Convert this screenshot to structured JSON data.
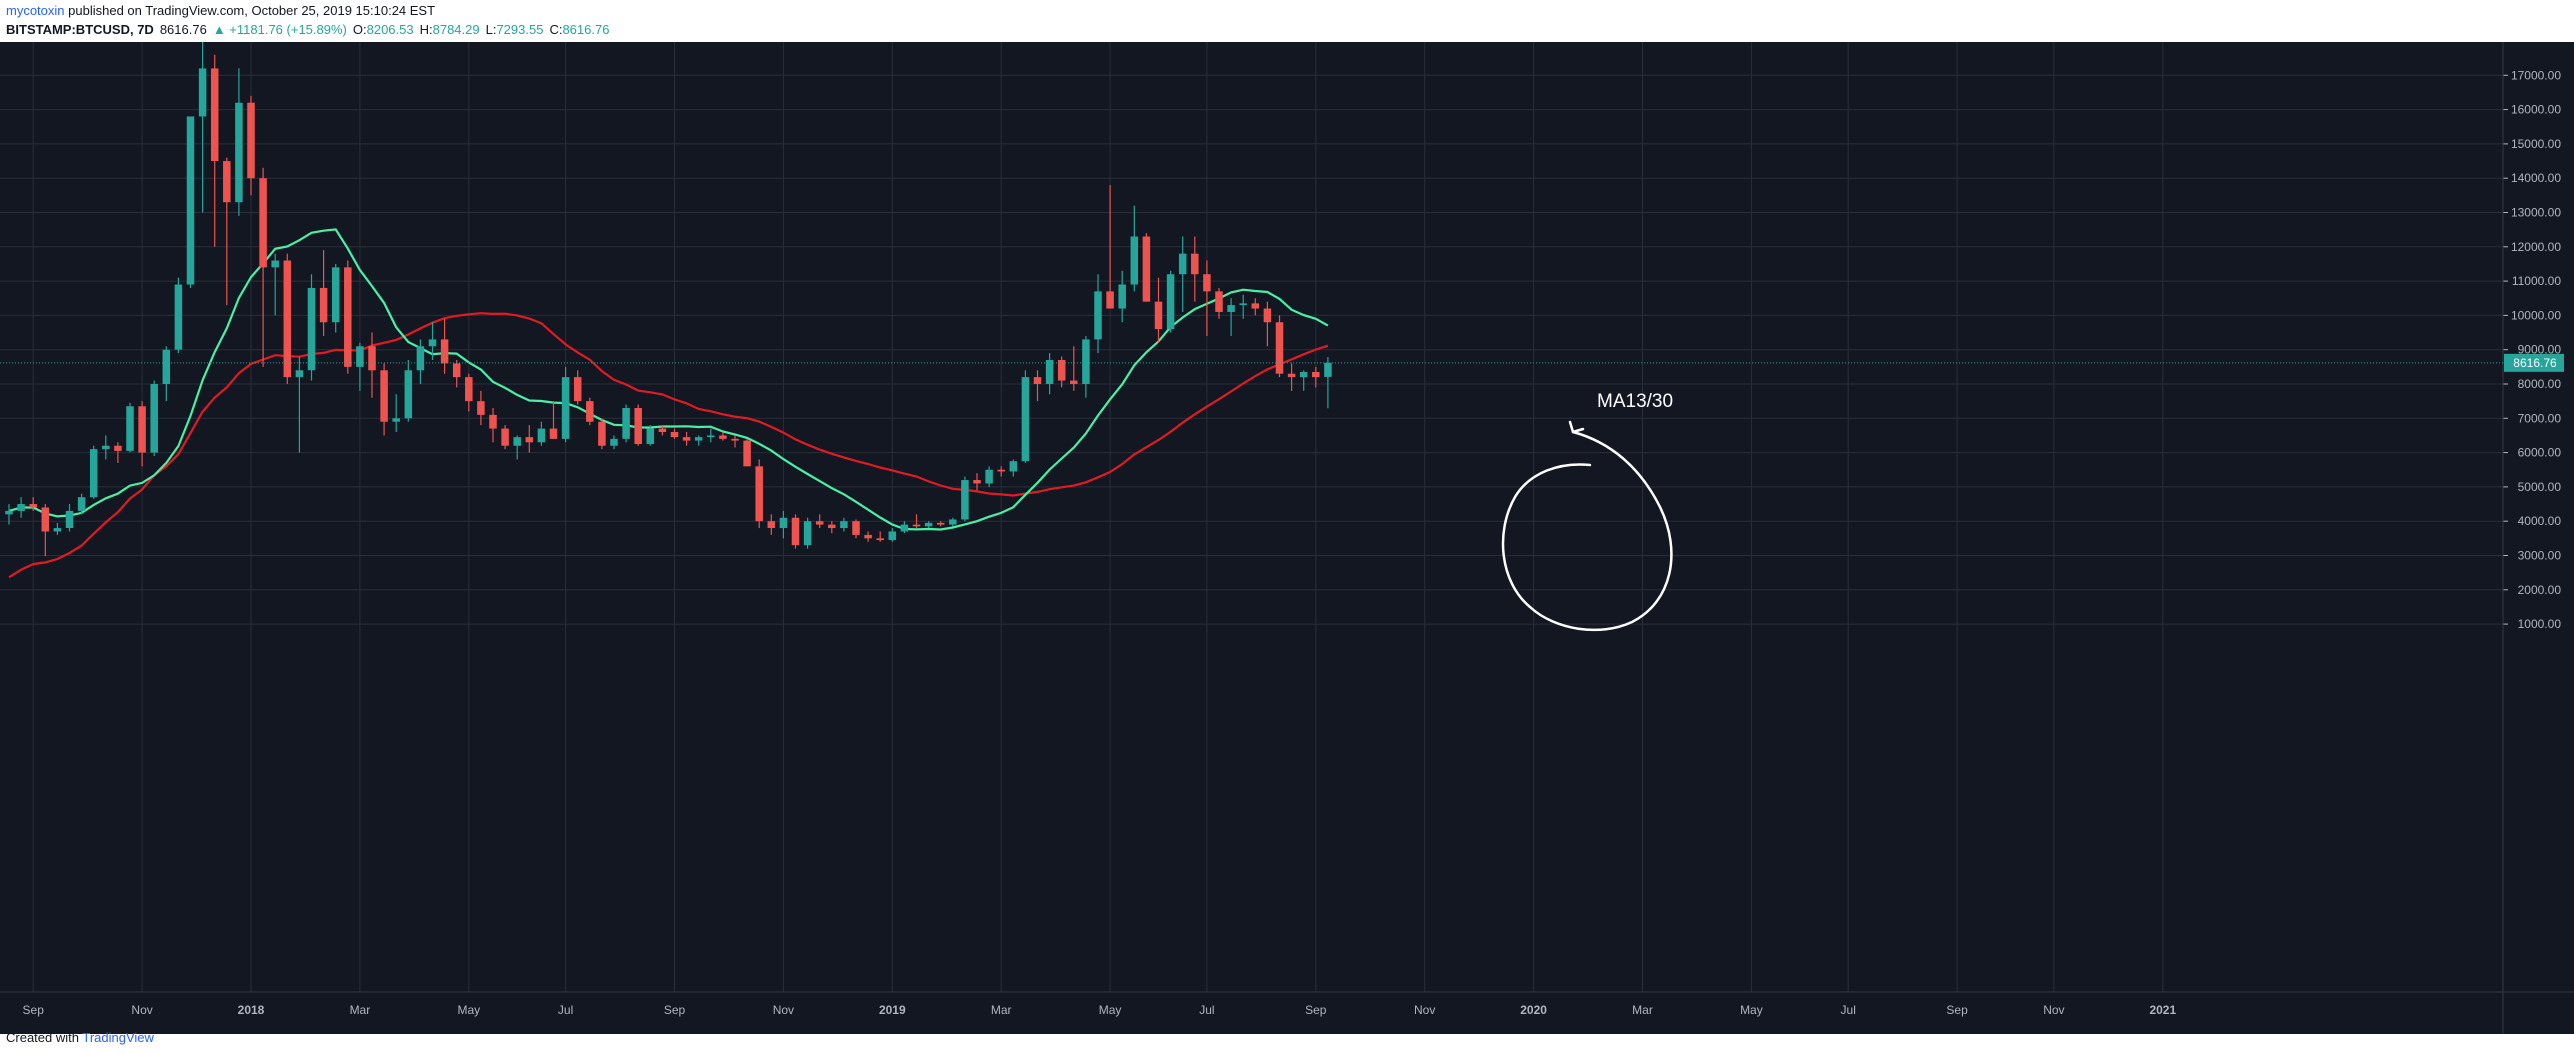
{
  "header": {
    "author": "mycotoxin",
    "published": "published on TradingView.com, October 25, 2019 15:10:24 EST",
    "symbol": "BITSTAMP:BTCUSD, 7D",
    "last": "8616.76",
    "change": "▲ +1181.76 (+15.89%)",
    "o_label": "O:",
    "o": "8206.53",
    "h_label": "H:",
    "h": "8784.29",
    "l_label": "L:",
    "l": "7293.55",
    "c_label": "C:",
    "c": "8616.76"
  },
  "footer": {
    "created_with": "Created with",
    "brand": "TradingView"
  },
  "colors": {
    "background": "#131722",
    "grid": "#2a2e39",
    "up": "#26a69a",
    "down": "#ef5350",
    "ma13": "#4bf0a4",
    "ma30": "#e01b24",
    "axis_text": "#b2b5be",
    "last_price_label": "#26a69a",
    "annotation": "#ffffff"
  },
  "chart_data": {
    "type": "candlestick",
    "timeframe": "7D",
    "y_axis_side": "right",
    "ylim": [
      700,
      17300
    ],
    "y_ticks": [
      "1000.00",
      "2000.00",
      "3000.00",
      "4000.00",
      "5000.00",
      "6000.00",
      "7000.00",
      "8000.00",
      "9000.00",
      "10000.00",
      "11000.00",
      "12000.00",
      "13000.00",
      "14000.00",
      "15000.00",
      "16000.00",
      "17000.00"
    ],
    "x_ticks": [
      {
        "label": "Sep",
        "week": 2
      },
      {
        "label": "Nov",
        "week": 11
      },
      {
        "label": "2018",
        "week": 20
      },
      {
        "label": "Mar",
        "week": 29
      },
      {
        "label": "May",
        "week": 38
      },
      {
        "label": "Jul",
        "week": 46
      },
      {
        "label": "Sep",
        "week": 55
      },
      {
        "label": "Nov",
        "week": 64
      },
      {
        "label": "2019",
        "week": 73
      },
      {
        "label": "Mar",
        "week": 82
      },
      {
        "label": "May",
        "week": 91
      },
      {
        "label": "Jul",
        "week": 99
      },
      {
        "label": "Sep",
        "week": 108
      },
      {
        "label": "Nov",
        "week": 117
      },
      {
        "label": "2020",
        "week": 126
      },
      {
        "label": "Mar",
        "week": 135
      },
      {
        "label": "May",
        "week": 144
      },
      {
        "label": "Jul",
        "week": 152
      },
      {
        "label": "Sep",
        "week": 161
      },
      {
        "label": "Nov",
        "week": 169
      },
      {
        "label": "2021",
        "week": 178
      }
    ],
    "last_price": 8616.76,
    "last_price_label": "8616.76",
    "annotation": "MA13/30",
    "candles": [
      [
        4200,
        4500,
        3900,
        4300
      ],
      [
        4300,
        4700,
        4100,
        4500
      ],
      [
        4500,
        4700,
        4300,
        4400
      ],
      [
        4400,
        4500,
        2980,
        3700
      ],
      [
        3700,
        3950,
        3600,
        3800
      ],
      [
        3800,
        4500,
        3700,
        4300
      ],
      [
        4300,
        4800,
        4200,
        4700
      ],
      [
        4700,
        6200,
        4650,
        6100
      ],
      [
        6100,
        6500,
        5800,
        6200
      ],
      [
        6200,
        6300,
        5700,
        6050
      ],
      [
        6050,
        7450,
        6000,
        7350
      ],
      [
        7350,
        7500,
        5600,
        6000
      ],
      [
        6000,
        8100,
        5900,
        8000
      ],
      [
        8000,
        9100,
        7500,
        9000
      ],
      [
        9000,
        11100,
        8900,
        10900
      ],
      [
        10900,
        15800,
        10800,
        15800
      ],
      [
        15800,
        19700,
        13000,
        17200
      ],
      [
        17200,
        17600,
        12000,
        14500
      ],
      [
        14500,
        14600,
        10300,
        13300
      ],
      [
        13300,
        17200,
        12900,
        16200
      ],
      [
        16200,
        16400,
        13500,
        14000
      ],
      [
        14000,
        14300,
        8500,
        11400
      ],
      [
        11400,
        11800,
        10000,
        11600
      ],
      [
        11600,
        11800,
        8000,
        8200
      ],
      [
        8200,
        8800,
        6000,
        8400
      ],
      [
        8400,
        11200,
        8100,
        10800
      ],
      [
        10800,
        11900,
        9400,
        9800
      ],
      [
        9800,
        11500,
        9500,
        11400
      ],
      [
        11400,
        11600,
        8300,
        8500
      ],
      [
        8500,
        9200,
        7800,
        9100
      ],
      [
        9100,
        9500,
        7600,
        8400
      ],
      [
        8400,
        8600,
        6500,
        6900
      ],
      [
        6900,
        7700,
        6600,
        7000
      ],
      [
        7000,
        8700,
        6900,
        8400
      ],
      [
        8400,
        9300,
        8000,
        9100
      ],
      [
        9100,
        9800,
        8700,
        9300
      ],
      [
        9300,
        9900,
        8300,
        8600
      ],
      [
        8600,
        8700,
        7900,
        8200
      ],
      [
        8200,
        8300,
        7200,
        7500
      ],
      [
        7500,
        7800,
        6800,
        7100
      ],
      [
        7100,
        7300,
        6300,
        6700
      ],
      [
        6700,
        6800,
        6100,
        6200
      ],
      [
        6200,
        6500,
        5800,
        6450
      ],
      [
        6450,
        6800,
        6000,
        6300
      ],
      [
        6300,
        6900,
        6200,
        6700
      ],
      [
        6700,
        7500,
        6400,
        6400
      ],
      [
        6400,
        8500,
        6300,
        8200
      ],
      [
        8200,
        8400,
        7400,
        7500
      ],
      [
        7500,
        7600,
        6800,
        6900
      ],
      [
        6900,
        7000,
        6100,
        6200
      ],
      [
        6200,
        6500,
        6100,
        6400
      ],
      [
        6400,
        7400,
        6300,
        7300
      ],
      [
        7300,
        7400,
        6200,
        6250
      ],
      [
        6250,
        6800,
        6200,
        6700
      ],
      [
        6700,
        6800,
        6500,
        6600
      ],
      [
        6600,
        6700,
        6400,
        6450
      ],
      [
        6450,
        6600,
        6200,
        6350
      ],
      [
        6350,
        6500,
        6200,
        6450
      ],
      [
        6450,
        6700,
        6300,
        6500
      ],
      [
        6500,
        6600,
        6350,
        6400
      ],
      [
        6400,
        6500,
        6150,
        6350
      ],
      [
        6350,
        6400,
        5600,
        5600
      ],
      [
        5600,
        5800,
        3800,
        4000
      ],
      [
        4000,
        4200,
        3600,
        3800
      ],
      [
        3800,
        4300,
        3500,
        4100
      ],
      [
        4100,
        4200,
        3200,
        3300
      ],
      [
        3300,
        4100,
        3200,
        4000
      ],
      [
        4000,
        4200,
        3800,
        3900
      ],
      [
        3900,
        4000,
        3650,
        3800
      ],
      [
        3800,
        4100,
        3700,
        4000
      ],
      [
        4000,
        4050,
        3500,
        3600
      ],
      [
        3600,
        3700,
        3400,
        3500
      ],
      [
        3500,
        3700,
        3400,
        3450
      ],
      [
        3450,
        3800,
        3400,
        3700
      ],
      [
        3700,
        4000,
        3650,
        3900
      ],
      [
        3900,
        4200,
        3800,
        3850
      ],
      [
        3850,
        4000,
        3800,
        3950
      ],
      [
        3950,
        4000,
        3850,
        3900
      ],
      [
        3900,
        4100,
        3850,
        4050
      ],
      [
        4050,
        5300,
        4000,
        5200
      ],
      [
        5200,
        5400,
        4900,
        5100
      ],
      [
        5100,
        5600,
        5000,
        5500
      ],
      [
        5500,
        5600,
        5300,
        5450
      ],
      [
        5450,
        5800,
        5300,
        5750
      ],
      [
        5750,
        8400,
        5700,
        8200
      ],
      [
        8200,
        8400,
        7500,
        8000
      ],
      [
        8000,
        8900,
        7700,
        8700
      ],
      [
        8700,
        8800,
        7900,
        8100
      ],
      [
        8100,
        9100,
        7800,
        8000
      ],
      [
        8000,
        9400,
        7600,
        9300
      ],
      [
        9300,
        11200,
        8900,
        10700
      ],
      [
        10700,
        13800,
        10200,
        10200
      ],
      [
        10200,
        11300,
        9800,
        10900
      ],
      [
        10900,
        13200,
        10700,
        12300
      ],
      [
        12300,
        12400,
        10400,
        10400
      ],
      [
        10400,
        11100,
        9200,
        9600
      ],
      [
        9600,
        11300,
        9500,
        11200
      ],
      [
        11200,
        12300,
        10100,
        11800
      ],
      [
        11800,
        12300,
        10400,
        11200
      ],
      [
        11200,
        11600,
        9400,
        10700
      ],
      [
        10700,
        10800,
        9900,
        10100
      ],
      [
        10100,
        10500,
        9400,
        10300
      ],
      [
        10300,
        10600,
        9900,
        10350
      ],
      [
        10350,
        10500,
        10000,
        10200
      ],
      [
        10200,
        10400,
        9100,
        9800
      ],
      [
        9800,
        10000,
        8200,
        8300
      ],
      [
        8300,
        8600,
        7800,
        8200
      ],
      [
        8200,
        8400,
        7800,
        8350
      ],
      [
        8350,
        8500,
        7900,
        8200
      ],
      [
        8206.53,
        8784.29,
        7293.55,
        8616.76
      ]
    ]
  }
}
